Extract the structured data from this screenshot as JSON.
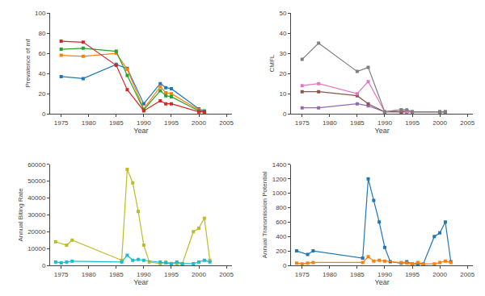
{
  "chart_data": [
    {
      "type": "line",
      "xlabel": "Year",
      "ylabel": "Prevalence of mf",
      "xlim": [
        1973,
        2006
      ],
      "xticks": [
        1975,
        1980,
        1985,
        1990,
        1995,
        2000,
        2005
      ],
      "ylim": [
        0,
        100
      ],
      "yticks": [
        0,
        20,
        40,
        60,
        80,
        100
      ],
      "grid": false,
      "marker": "square",
      "line_style": "solid",
      "series": [
        {
          "x": [
            1975,
            1979,
            1985,
            1987,
            1990,
            1993,
            1994,
            1995,
            2000,
            2001
          ],
          "values": [
            37,
            35,
            49,
            45,
            10,
            30,
            26,
            25,
            5,
            3
          ]
        },
        {
          "x": [
            1975,
            1979,
            1985,
            1987,
            1990,
            1993,
            1994,
            1995,
            2000,
            2001
          ],
          "values": [
            58,
            57,
            60,
            44,
            5,
            27,
            21,
            20,
            4,
            2
          ]
        },
        {
          "x": [
            1975,
            1979,
            1985,
            1987,
            1990,
            1993,
            1994,
            1995,
            2000,
            2001
          ],
          "values": [
            64,
            65,
            62,
            38,
            4,
            23,
            18,
            17,
            3,
            2
          ]
        },
        {
          "x": [
            1975,
            1979,
            1985,
            1987,
            1990,
            1993,
            1994,
            1995,
            2000,
            2001
          ],
          "values": [
            72,
            71,
            48,
            24,
            3,
            13,
            10,
            10,
            2,
            2
          ]
        }
      ]
    },
    {
      "type": "line",
      "xlabel": "Year",
      "ylabel": "CMFL",
      "xlim": [
        1973,
        2006
      ],
      "xticks": [
        1975,
        1980,
        1985,
        1990,
        1995,
        2000,
        2005
      ],
      "ylim": [
        0,
        50
      ],
      "yticks": [
        0,
        10,
        20,
        30,
        40,
        50
      ],
      "grid": false,
      "marker": "square",
      "line_style": "solid",
      "series": [
        {
          "x": [
            1975,
            1978,
            1985,
            1987,
            1990,
            1993,
            1994,
            1995,
            2000,
            2001
          ],
          "values": [
            3,
            3,
            5,
            4,
            1,
            1,
            1,
            1,
            1,
            1
          ]
        },
        {
          "x": [
            1975,
            1978,
            1985,
            1987,
            1990,
            1993,
            1994,
            1995,
            2000,
            2001
          ],
          "values": [
            11,
            11,
            9,
            5,
            1,
            1,
            1,
            1,
            1,
            1
          ]
        },
        {
          "x": [
            1975,
            1978,
            1985,
            1987,
            1990,
            1993,
            1994,
            1995,
            2000,
            2001
          ],
          "values": [
            14,
            15,
            10,
            16,
            1,
            2,
            1,
            1,
            1,
            1
          ]
        },
        {
          "x": [
            1975,
            1978,
            1985,
            1987,
            1990,
            1993,
            1994,
            1995,
            2000,
            2001
          ],
          "values": [
            27,
            35,
            21,
            23,
            1,
            2,
            2,
            1,
            1,
            1
          ]
        }
      ]
    },
    {
      "type": "line",
      "xlabel": "Year",
      "ylabel": "Annual Biting Rate",
      "xlim": [
        1973,
        2006
      ],
      "xticks": [
        1975,
        1980,
        1985,
        1990,
        1995,
        2000,
        2005
      ],
      "ylim": [
        0,
        60000
      ],
      "yticks": [
        0,
        10000,
        20000,
        30000,
        40000,
        50000,
        60000
      ],
      "grid": false,
      "marker": "square",
      "line_style": "solid",
      "series": [
        {
          "x": [
            1974,
            1976,
            1977,
            1986,
            1987,
            1988,
            1989,
            1990,
            1991,
            1993,
            1994,
            1995,
            1996,
            1997,
            1999,
            2000,
            2001,
            2002
          ],
          "values": [
            14000,
            12000,
            15000,
            3000,
            57000,
            49000,
            32000,
            12000,
            2000,
            1000,
            2000,
            1000,
            1000,
            1000,
            20000,
            22000,
            28000,
            3000
          ]
        },
        {
          "x": [
            1974,
            1975,
            1976,
            1977,
            1986,
            1987,
            1988,
            1989,
            1990,
            1993,
            1994,
            1995,
            1996,
            1997,
            1999,
            2000,
            2001,
            2002
          ],
          "values": [
            2000,
            1500,
            2000,
            2500,
            2000,
            6000,
            3000,
            3500,
            3000,
            2000,
            1500,
            1000,
            2000,
            1000,
            1000,
            2000,
            3000,
            2000
          ]
        }
      ]
    },
    {
      "type": "line",
      "xlabel": "Year",
      "ylabel": "Annual Transmission Potential",
      "xlim": [
        1973,
        2006
      ],
      "xticks": [
        1975,
        1980,
        1985,
        1990,
        1995,
        2000,
        2005
      ],
      "ylim": [
        0,
        1400
      ],
      "yticks": [
        0,
        200,
        400,
        600,
        800,
        1000,
        1200,
        1400
      ],
      "grid": false,
      "marker": "square",
      "line_style": "solid",
      "series": [
        {
          "x": [
            1974,
            1976,
            1977,
            1986,
            1987,
            1988,
            1989,
            1990,
            1991,
            1993,
            1994,
            1995,
            1996,
            1997,
            1999,
            2000,
            2001,
            2002
          ],
          "values": [
            200,
            150,
            200,
            100,
            1200,
            900,
            600,
            250,
            50,
            30,
            50,
            20,
            20,
            20,
            400,
            450,
            600,
            50
          ]
        },
        {
          "x": [
            1974,
            1975,
            1976,
            1977,
            1986,
            1987,
            1988,
            1989,
            1990,
            1993,
            1994,
            1995,
            1996,
            1997,
            1999,
            2000,
            2001,
            2002
          ],
          "values": [
            30,
            20,
            30,
            40,
            40,
            120,
            60,
            70,
            60,
            40,
            30,
            20,
            40,
            20,
            20,
            40,
            60,
            40
          ]
        }
      ]
    }
  ]
}
